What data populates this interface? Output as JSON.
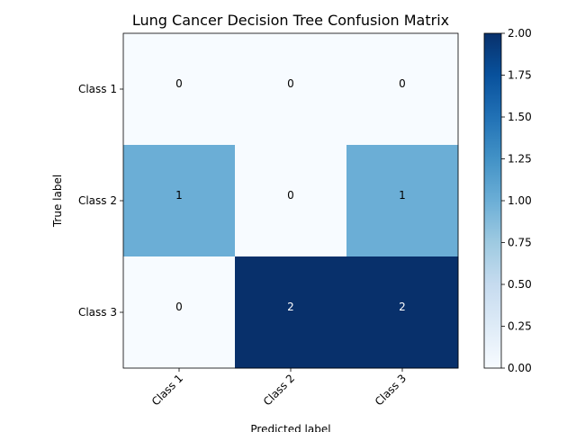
{
  "chart_data": {
    "type": "heatmap",
    "title": "Lung Cancer Decision Tree Confusion Matrix",
    "xlabel": "Predicted label",
    "ylabel": "True label",
    "x_categories": [
      "Class 1",
      "Class 2",
      "Class 3"
    ],
    "y_categories": [
      "Class 1",
      "Class 2",
      "Class 3"
    ],
    "values": [
      [
        0,
        0,
        0
      ],
      [
        1,
        0,
        1
      ],
      [
        0,
        2,
        2
      ]
    ],
    "colormap": "Blues",
    "color_range": [
      0,
      2
    ],
    "colorbar_ticks": [
      "0.00",
      "0.25",
      "0.50",
      "0.75",
      "1.00",
      "1.25",
      "1.50",
      "1.75",
      "2.00"
    ],
    "x_tick_rotation_deg": 45,
    "colors": {
      "low": "#f7fbff",
      "mid": "#6baed6",
      "high": "#08306b",
      "text_dark": "#000000",
      "text_light": "#ffffff"
    }
  }
}
